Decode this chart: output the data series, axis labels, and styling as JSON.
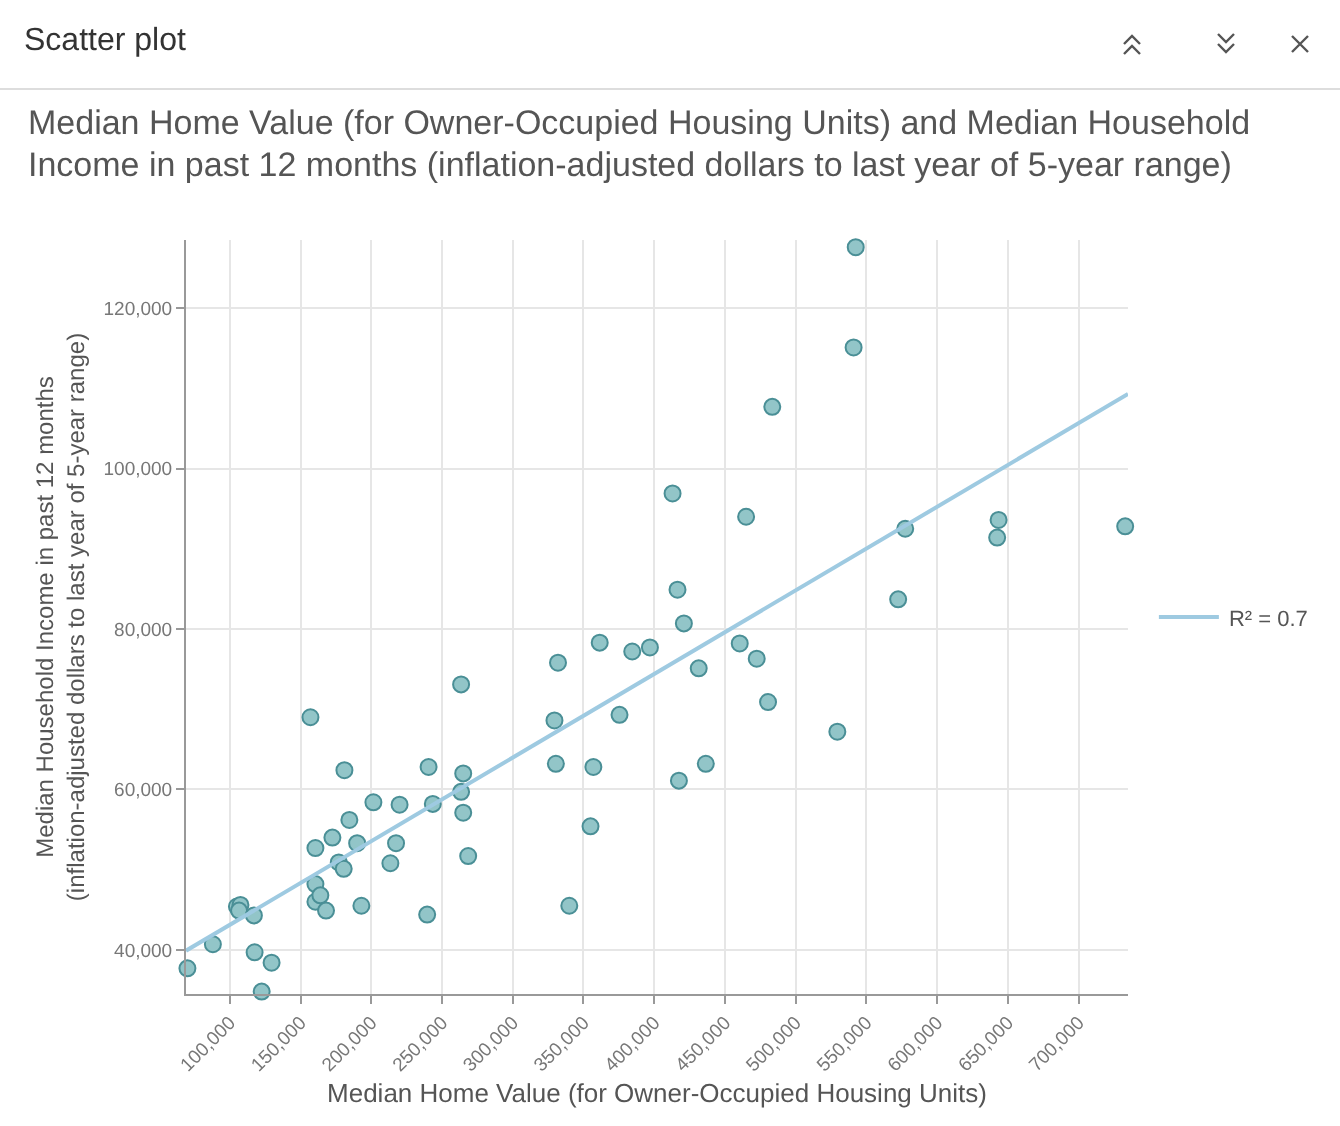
{
  "chart_data": {
    "type": "scatter",
    "title": "Median Home Value (for Owner-Occupied Housing Units) and Median Household Income in past 12 months (inflation-adjusted dollars to last year of 5-year range)",
    "annotations": [
      "Scatter plot"
    ],
    "xlabel": "Median Home Value (for Owner-Occupied Housing Units)",
    "ylabel": "Median Household Income in past 12 months (inflation-adjusted dollars to last year of 5-year range)",
    "xlim": [
      69000,
      735000
    ],
    "ylim": [
      34500,
      128500
    ],
    "xticks": [
      {
        "value": 100000,
        "label": "100,000"
      },
      {
        "value": 150000,
        "label": "150,000"
      },
      {
        "value": 200000,
        "label": "200,000"
      },
      {
        "value": 250000,
        "label": "250,000"
      },
      {
        "value": 300000,
        "label": "300,000"
      },
      {
        "value": 350000,
        "label": "350,000"
      },
      {
        "value": 400000,
        "label": "400,000"
      },
      {
        "value": 450000,
        "label": "450,000"
      },
      {
        "value": 500000,
        "label": "500,000"
      },
      {
        "value": 550000,
        "label": "550,000"
      },
      {
        "value": 600000,
        "label": "600,000"
      },
      {
        "value": 650000,
        "label": "650,000"
      },
      {
        "value": 700000,
        "label": "700,000"
      }
    ],
    "yticks": [
      {
        "value": 40000,
        "label": "40,000"
      },
      {
        "value": 60000,
        "label": "60,000"
      },
      {
        "value": 80000,
        "label": "80,000"
      },
      {
        "value": 100000,
        "label": "100,000"
      },
      {
        "value": 120000,
        "label": "120,000"
      }
    ],
    "grid": true,
    "legend": "right",
    "marker": "circle",
    "series": [
      {
        "color": "#92c5c8",
        "x": [
          70000,
          88000,
          105000,
          107500,
          106500,
          117000,
          117500,
          129500,
          122500,
          157000,
          160500,
          160500,
          160500,
          164000,
          168000,
          172500,
          177000,
          180500,
          181000,
          184500,
          190000,
          193000,
          201500,
          213500,
          217500,
          220000,
          239500,
          240500,
          243500,
          263500,
          263500,
          265000,
          265000,
          268500,
          329500,
          330500,
          332000,
          340000,
          355000,
          357000,
          361500,
          375500,
          384500,
          397000,
          413000,
          416500,
          421000,
          431500,
          460500,
          472500,
          465000,
          483500,
          541000,
          542500,
          572500,
          577500,
          642500,
          643500,
          733000,
          480500,
          529500,
          417500,
          436500
        ],
        "values": [
          37700,
          40700,
          45400,
          45600,
          44900,
          44300,
          39700,
          38400,
          34800,
          69000,
          52700,
          48200,
          46000,
          46800,
          44900,
          54000,
          50900,
          50100,
          62400,
          56200,
          53300,
          45500,
          58400,
          50800,
          53300,
          58100,
          44400,
          62800,
          58200,
          73100,
          59700,
          62000,
          57100,
          51700,
          68600,
          63200,
          75800,
          45500,
          55400,
          62800,
          78300,
          69300,
          77200,
          77700,
          96900,
          84900,
          80700,
          75100,
          78200,
          76300,
          94000,
          107700,
          115100,
          127600,
          83700,
          92500,
          91400,
          93600,
          92800,
          70900,
          67200,
          61100,
          63200
        ]
      },
      {
        "type": "line",
        "marker": "none",
        "name": "R² = 0.7",
        "color": "#9ecae1",
        "x": [
          69000,
          735000
        ],
        "values": [
          39900,
          109300
        ]
      }
    ]
  }
}
